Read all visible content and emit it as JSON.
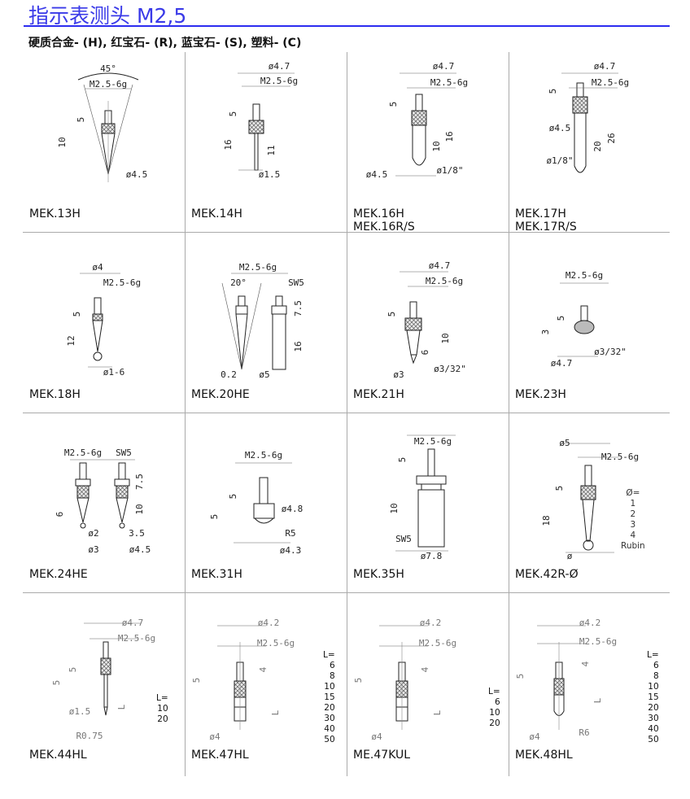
{
  "title": "指示表测头 M2,5",
  "subtitle": "硬质合金- (H), 红宝石- (R), 蓝宝石- (S), 塑料- (C)",
  "cells": [
    {
      "name": "MEK.13H",
      "notes": [
        "45°",
        "M2.5-6g",
        "5",
        "10",
        "ø4.5"
      ]
    },
    {
      "name": "MEK.14H",
      "notes": [
        "ø4.7",
        "M2.5-6g",
        "5",
        "16",
        "11",
        "ø1.5"
      ]
    },
    {
      "name": "MEK.16H",
      "name2": "MEK.16R/S",
      "notes": [
        "ø4.7",
        "M2.5-6g",
        "5",
        "16",
        "10",
        "ø4.5",
        "ø1/8\""
      ]
    },
    {
      "name": "MEK.17H",
      "name2": "MEK.17R/S",
      "notes": [
        "ø4.7",
        "M2.5-6g",
        "5",
        "ø4.5",
        "20",
        "26",
        "ø1/8\""
      ]
    },
    {
      "name": "MEK.18H",
      "notes": [
        "ø4",
        "M2.5-6g",
        "5",
        "12",
        "ø1-6"
      ]
    },
    {
      "name": "MEK.20HE",
      "notes": [
        "M2.5-6g",
        "20°",
        "SW5",
        "7.5",
        "16",
        "0.2",
        "ø5"
      ]
    },
    {
      "name": "MEK.21H",
      "notes": [
        "ø4.7",
        "M2.5-6g",
        "5",
        "10",
        "6",
        "ø3",
        "ø3/32\""
      ]
    },
    {
      "name": "MEK.23H",
      "notes": [
        "M2.5-6g",
        "5",
        "3",
        "ø3/32\"",
        "ø4.7"
      ]
    },
    {
      "name": "MEK.24HE",
      "notes": [
        "M2.5-6g",
        "SW5",
        "7.5",
        "10",
        "6",
        "ø2",
        "3.5",
        "ø3",
        "ø4.5"
      ]
    },
    {
      "name": "MEK.31H",
      "notes": [
        "M2.5-6g",
        "5",
        "ø4.8",
        "5",
        "R5",
        "ø4.3"
      ]
    },
    {
      "name": "MEK.35H",
      "notes": [
        "M2.5-6g",
        "5",
        "10",
        "SW5",
        "ø7.8"
      ]
    },
    {
      "name": "MEK.42R-Ø",
      "notes": [
        "ø5",
        "M2.5-6g",
        "5",
        "18",
        "ø"
      ],
      "options": [
        "Ø=",
        "1",
        "2",
        "3",
        "4",
        "Rubin"
      ]
    },
    {
      "name": "MEK.44HL",
      "notes": [
        "ø4.7",
        "M2.5-6g",
        "5",
        "5",
        "ø1.5",
        "R0.75",
        "L"
      ],
      "lengths": [
        "L=",
        "10",
        "20"
      ]
    },
    {
      "name": "MEK.47HL",
      "notes": [
        "ø4.2",
        "M2.5-6g",
        "4",
        "5",
        "L",
        "ø4"
      ],
      "lengths": [
        "L=",
        "6",
        "8",
        "10",
        "15",
        "20",
        "30",
        "40",
        "50"
      ]
    },
    {
      "name": "ME.47KUL",
      "notes": [
        "ø4.2",
        "M2.5-6g",
        "4",
        "5",
        "L",
        "ø4"
      ],
      "lengths": [
        "L=",
        "6",
        "10",
        "20"
      ]
    },
    {
      "name": "MEK.48HL",
      "notes": [
        "ø4.2",
        "M2.5-6g",
        "4",
        "5",
        "L",
        "R6",
        "ø4"
      ],
      "lengths": [
        "L=",
        "6",
        "8",
        "10",
        "15",
        "20",
        "30",
        "40",
        "50"
      ]
    }
  ]
}
